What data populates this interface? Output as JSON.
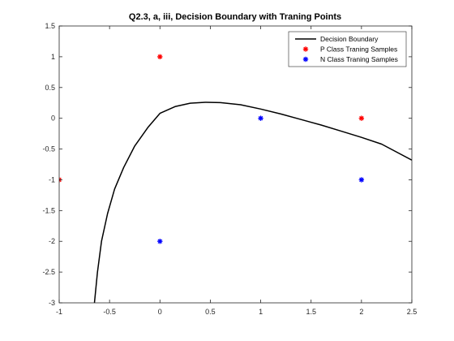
{
  "chart_data": {
    "type": "scatter",
    "title": "Q2.3, a, iii, Decision Boundary with Traning Points",
    "xlabel": "",
    "ylabel": "",
    "xlim": [
      -1,
      2.5
    ],
    "ylim": [
      -3,
      1.5
    ],
    "xticks": [
      -1,
      -0.5,
      0,
      0.5,
      1,
      1.5,
      2,
      2.5
    ],
    "xtick_labels": [
      "-1",
      "-0.5",
      "0",
      "0.5",
      "1",
      "1.5",
      "2",
      "2.5"
    ],
    "yticks": [
      -3,
      -2.5,
      -2,
      -1.5,
      -1,
      -0.5,
      0,
      0.5,
      1,
      1.5
    ],
    "ytick_labels": [
      "-3",
      "-2.5",
      "-2",
      "-1.5",
      "-1",
      "-0.5",
      "0",
      "0.5",
      "1",
      "1.5"
    ],
    "grid": false,
    "legend_position": "top-right",
    "series": [
      {
        "name": "Decision Boundary",
        "kind": "line",
        "color": "#000000",
        "points": [
          [
            -0.65,
            -3.0
          ],
          [
            -0.62,
            -2.5
          ],
          [
            -0.58,
            -2.0
          ],
          [
            -0.52,
            -1.55
          ],
          [
            -0.45,
            -1.15
          ],
          [
            -0.36,
            -0.8
          ],
          [
            -0.25,
            -0.45
          ],
          [
            -0.12,
            -0.15
          ],
          [
            0.0,
            0.08
          ],
          [
            0.15,
            0.19
          ],
          [
            0.3,
            0.245
          ],
          [
            0.45,
            0.26
          ],
          [
            0.6,
            0.255
          ],
          [
            0.8,
            0.22
          ],
          [
            1.0,
            0.15
          ],
          [
            1.2,
            0.07
          ],
          [
            1.4,
            -0.02
          ],
          [
            1.6,
            -0.11
          ],
          [
            1.8,
            -0.21
          ],
          [
            2.0,
            -0.31
          ],
          [
            2.2,
            -0.42
          ],
          [
            2.5,
            -0.68
          ]
        ]
      },
      {
        "name": "P Class Traning Samples",
        "kind": "points",
        "color": "#ff0000",
        "points": [
          [
            0,
            1
          ],
          [
            2,
            0
          ],
          [
            -1,
            -1
          ]
        ]
      },
      {
        "name": "N Class Traning Samples",
        "kind": "points",
        "color": "#0000ff",
        "points": [
          [
            1,
            0
          ],
          [
            2,
            -1
          ],
          [
            0,
            -2
          ]
        ]
      }
    ]
  }
}
